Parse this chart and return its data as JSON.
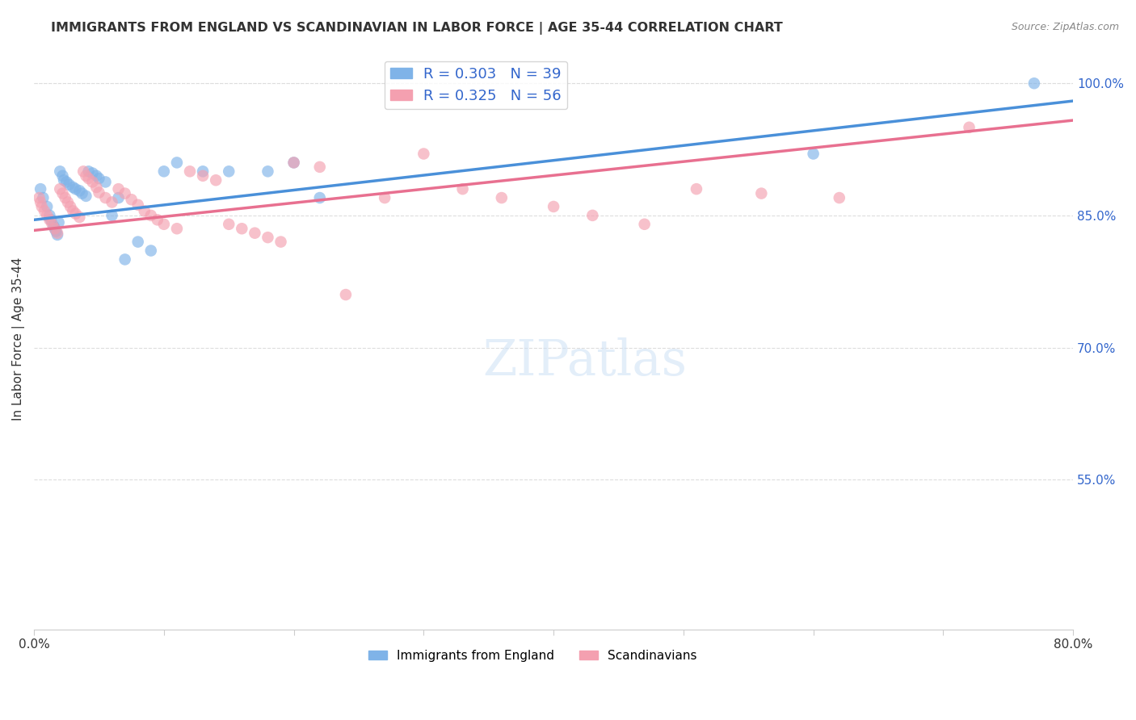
{
  "title": "IMMIGRANTS FROM ENGLAND VS SCANDINAVIAN IN LABOR FORCE | AGE 35-44 CORRELATION CHART",
  "source": "Source: ZipAtlas.com",
  "ylabel": "In Labor Force | Age 35-44",
  "xlim": [
    0.0,
    0.8
  ],
  "ylim": [
    0.38,
    1.04
  ],
  "xticks": [
    0.0,
    0.1,
    0.2,
    0.3,
    0.4,
    0.5,
    0.6,
    0.7,
    0.8
  ],
  "xticklabels": [
    "0.0%",
    "",
    "",
    "",
    "",
    "",
    "",
    "",
    "80.0%"
  ],
  "yticks_right": [
    0.55,
    0.7,
    0.85,
    1.0
  ],
  "ytick_labels_right": [
    "55.0%",
    "70.0%",
    "85.0%",
    "100.0%"
  ],
  "england_R": 0.303,
  "england_N": 39,
  "scand_R": 0.325,
  "scand_N": 56,
  "england_color": "#7FB3E8",
  "scand_color": "#F4A0B0",
  "england_line_color": "#4A90D9",
  "scand_line_color": "#E87090",
  "legend_R_color": "#3366CC",
  "background_color": "#ffffff",
  "grid_color": "#dddddd",
  "england_x": [
    0.005,
    0.007,
    0.01,
    0.012,
    0.013,
    0.015,
    0.016,
    0.017,
    0.018,
    0.019,
    0.02,
    0.022,
    0.023,
    0.025,
    0.027,
    0.03,
    0.032,
    0.035,
    0.037,
    0.04,
    0.042,
    0.045,
    0.048,
    0.05,
    0.055,
    0.06,
    0.065,
    0.07,
    0.08,
    0.09,
    0.1,
    0.11,
    0.13,
    0.15,
    0.18,
    0.2,
    0.22,
    0.6,
    0.77
  ],
  "england_y": [
    0.88,
    0.87,
    0.86,
    0.85,
    0.845,
    0.838,
    0.835,
    0.832,
    0.828,
    0.842,
    0.9,
    0.895,
    0.89,
    0.888,
    0.885,
    0.882,
    0.88,
    0.878,
    0.875,
    0.872,
    0.9,
    0.898,
    0.895,
    0.892,
    0.888,
    0.85,
    0.87,
    0.8,
    0.82,
    0.81,
    0.9,
    0.91,
    0.9,
    0.9,
    0.9,
    0.91,
    0.87,
    0.92,
    1.0
  ],
  "scand_x": [
    0.004,
    0.005,
    0.006,
    0.008,
    0.01,
    0.012,
    0.014,
    0.016,
    0.018,
    0.02,
    0.022,
    0.024,
    0.026,
    0.028,
    0.03,
    0.032,
    0.035,
    0.038,
    0.04,
    0.042,
    0.045,
    0.048,
    0.05,
    0.055,
    0.06,
    0.065,
    0.07,
    0.075,
    0.08,
    0.085,
    0.09,
    0.095,
    0.1,
    0.11,
    0.12,
    0.13,
    0.14,
    0.15,
    0.16,
    0.17,
    0.18,
    0.19,
    0.2,
    0.22,
    0.24,
    0.27,
    0.3,
    0.33,
    0.36,
    0.4,
    0.43,
    0.47,
    0.51,
    0.56,
    0.62,
    0.72
  ],
  "scand_y": [
    0.87,
    0.865,
    0.86,
    0.855,
    0.85,
    0.845,
    0.84,
    0.835,
    0.83,
    0.88,
    0.875,
    0.87,
    0.865,
    0.86,
    0.855,
    0.852,
    0.848,
    0.9,
    0.895,
    0.892,
    0.888,
    0.882,
    0.876,
    0.87,
    0.865,
    0.88,
    0.875,
    0.868,
    0.862,
    0.855,
    0.85,
    0.845,
    0.84,
    0.835,
    0.9,
    0.895,
    0.89,
    0.84,
    0.835,
    0.83,
    0.825,
    0.82,
    0.91,
    0.905,
    0.76,
    0.87,
    0.92,
    0.88,
    0.87,
    0.86,
    0.85,
    0.84,
    0.88,
    0.875,
    0.87,
    0.95
  ]
}
